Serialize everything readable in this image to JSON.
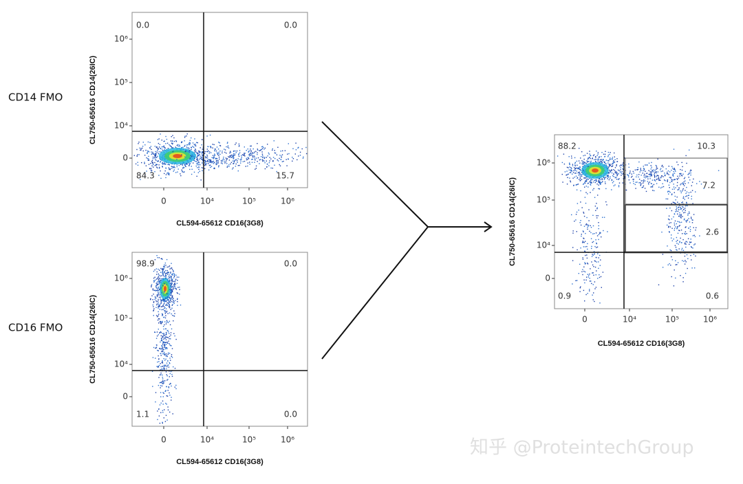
{
  "row_labels": [
    "CD14 FMO",
    "CD16 FMO"
  ],
  "plots": [
    {
      "y_label": "CL750-65616 CD14(26IC)",
      "x_label": "CL594-65612 CD16(3G8)",
      "y_ticks": [
        "0",
        "10⁴",
        "10⁵",
        "10⁶"
      ],
      "x_ticks": [
        "0",
        "10⁴",
        "10⁵",
        "10⁶"
      ],
      "gates": [
        "0.0",
        "0.0",
        "84.3",
        "15.7"
      ]
    },
    {
      "y_label": "CL750-65616 CD14(26IC)",
      "x_label": "CL594-65612 CD16(3G8)",
      "y_ticks": [
        "0",
        "10⁴",
        "10⁵",
        "10⁶"
      ],
      "x_ticks": [
        "0",
        "10⁴",
        "10⁵",
        "10⁶"
      ],
      "gates": [
        "98.9",
        "0.0",
        "1.1",
        "0.0"
      ]
    },
    {
      "y_label": "CL750-65616 CD14(26IC)",
      "x_label": "CL594-65612 CD16(3G8)",
      "y_ticks": [
        "0",
        "10⁴",
        "10⁵",
        "10⁶"
      ],
      "x_ticks": [
        "0",
        "10⁴",
        "10⁵",
        "10⁶"
      ],
      "gates": [
        "88.2",
        "10.3",
        "7.2",
        "2.6",
        "0.9",
        "0.6"
      ]
    }
  ],
  "watermark": "知乎 @ProteintechGroup"
}
